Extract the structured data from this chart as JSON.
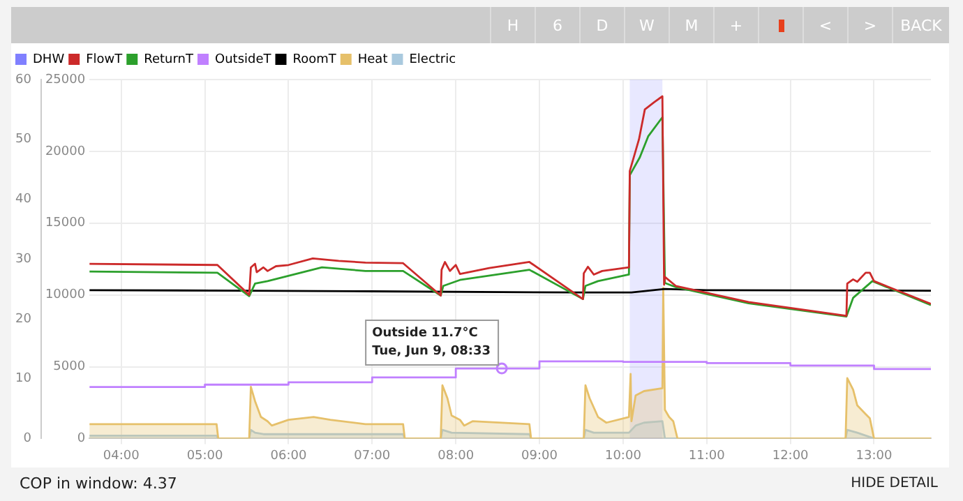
{
  "chart_data": {
    "type": "line",
    "xlim": [
      3.62,
      13.68
    ],
    "xticks": [
      {
        "value": 4,
        "label": "04:00"
      },
      {
        "value": 5,
        "label": "05:00"
      },
      {
        "value": 6,
        "label": "06:00"
      },
      {
        "value": 7,
        "label": "07:00"
      },
      {
        "value": 8,
        "label": "08:00"
      },
      {
        "value": 9,
        "label": "09:00"
      },
      {
        "value": 10,
        "label": "10:00"
      },
      {
        "value": 11,
        "label": "11:00"
      },
      {
        "value": 12,
        "label": "12:00"
      },
      {
        "value": 13,
        "label": "13:00"
      }
    ],
    "ylim": [
      0,
      60
    ],
    "yticks": [
      0,
      10,
      20,
      30,
      40,
      50,
      60
    ],
    "y2lim": [
      0,
      25000
    ],
    "y2ticks": [
      0,
      5000,
      10000,
      15000,
      20000,
      25000
    ],
    "grid": true,
    "legend": "top left",
    "marker": "none",
    "line_style": "solid",
    "bands": [
      {
        "axis": "x",
        "from": 10.08,
        "to": 10.47,
        "label": "DHW",
        "color": "#8080ff"
      }
    ],
    "series": [
      {
        "name": "FlowT",
        "color": "#cc2a2a",
        "type": "line",
        "x": [
          3.62,
          5.15,
          5.53,
          5.55,
          5.6,
          5.62,
          5.7,
          5.75,
          5.85,
          6.0,
          6.29,
          6.6,
          6.92,
          7.37,
          7.82,
          7.83,
          7.87,
          7.93,
          8.0,
          8.05,
          8.4,
          8.88,
          9.52,
          9.53,
          9.58,
          9.65,
          9.75,
          10.07,
          10.08,
          10.19,
          10.26,
          10.37,
          10.47,
          10.49,
          10.5,
          10.63,
          11.5,
          12.67,
          12.68,
          12.75,
          12.8,
          12.9,
          12.95,
          13.0,
          13.68
        ],
        "values": [
          29.2,
          29.0,
          24.0,
          28.6,
          29.2,
          27.8,
          28.6,
          28.0,
          28.8,
          29.0,
          30.1,
          29.7,
          29.4,
          29.3,
          23.9,
          28.2,
          29.5,
          28.0,
          29.0,
          27.5,
          28.5,
          29.5,
          23.3,
          27.6,
          28.7,
          27.4,
          28.0,
          28.6,
          44.7,
          50.0,
          55.0,
          56.2,
          57.2,
          25.7,
          27.0,
          25.5,
          22.8,
          20.5,
          25.9,
          26.6,
          26.2,
          27.7,
          27.7,
          26.3,
          22.5
        ]
      },
      {
        "name": "ReturnT",
        "color": "#2ca02c",
        "type": "line",
        "x": [
          3.62,
          5.15,
          5.53,
          5.6,
          5.75,
          6.4,
          6.92,
          7.37,
          7.82,
          7.85,
          8.05,
          8.88,
          9.52,
          9.55,
          9.7,
          10.07,
          10.08,
          10.2,
          10.3,
          10.47,
          10.5,
          10.63,
          11.5,
          12.67,
          12.75,
          12.98,
          13.68
        ],
        "values": [
          27.9,
          27.7,
          23.8,
          25.9,
          26.3,
          28.6,
          28.0,
          28.0,
          23.9,
          25.5,
          26.5,
          28.2,
          23.3,
          25.5,
          26.3,
          27.4,
          44.0,
          47.0,
          50.5,
          53.7,
          26.0,
          25.3,
          22.6,
          20.4,
          23.5,
          26.3,
          22.3
        ]
      },
      {
        "name": "OutsideT",
        "color": "#c080ff",
        "type": "step",
        "x": [
          3.62,
          5.0,
          6.0,
          7.0,
          8.0,
          9.0,
          10.0,
          11.0,
          12.0,
          13.0,
          13.68
        ],
        "values": [
          8.6,
          9.0,
          9.4,
          10.2,
          11.7,
          12.9,
          12.8,
          12.6,
          12.2,
          11.6,
          11.6
        ]
      },
      {
        "name": "RoomT",
        "color": "#000000",
        "type": "line",
        "x": [
          3.62,
          5.5,
          7.0,
          9.5,
          10.1,
          10.5,
          11.0,
          13.68
        ],
        "values": [
          24.8,
          24.7,
          24.6,
          24.4,
          24.4,
          25.0,
          24.8,
          24.7
        ]
      },
      {
        "name": "Heat",
        "color": "#e6c06a",
        "type": "area",
        "axis": "y2",
        "x": [
          3.62,
          5.14,
          5.16,
          5.53,
          5.55,
          5.6,
          5.67,
          5.75,
          5.8,
          6.0,
          6.3,
          6.5,
          6.92,
          7.37,
          7.39,
          7.82,
          7.84,
          7.9,
          7.95,
          8.05,
          8.1,
          8.2,
          8.88,
          8.9,
          9.53,
          9.55,
          9.6,
          9.7,
          9.8,
          10.07,
          10.09,
          10.1,
          10.15,
          10.25,
          10.47,
          10.48,
          10.5,
          10.55,
          10.6,
          10.65,
          12.66,
          12.68,
          12.75,
          12.8,
          12.9,
          12.95,
          13.0,
          13.68
        ],
        "values": [
          1000,
          1000,
          0,
          0,
          3600,
          2600,
          1500,
          1200,
          900,
          1300,
          1500,
          1300,
          1000,
          1000,
          0,
          0,
          3700,
          2800,
          1600,
          1300,
          900,
          1200,
          1000,
          0,
          0,
          3700,
          2800,
          1500,
          1100,
          1500,
          4500,
          1200,
          3000,
          3300,
          3500,
          10500,
          2000,
          1500,
          1200,
          0,
          0,
          4200,
          3400,
          2300,
          1700,
          1400,
          0,
          0
        ]
      },
      {
        "name": "Electric",
        "color": "#a9c9de",
        "type": "area",
        "axis": "y2",
        "x": [
          3.62,
          5.14,
          5.16,
          5.53,
          5.55,
          5.6,
          5.7,
          7.37,
          7.39,
          7.82,
          7.84,
          7.95,
          8.88,
          8.9,
          9.53,
          9.55,
          9.65,
          10.07,
          10.15,
          10.25,
          10.47,
          10.5,
          12.66,
          12.68,
          12.8,
          13.0,
          13.68
        ],
        "values": [
          200,
          200,
          0,
          0,
          600,
          400,
          300,
          300,
          0,
          0,
          600,
          400,
          300,
          0,
          0,
          600,
          400,
          400,
          900,
          1100,
          1200,
          0,
          0,
          600,
          400,
          0,
          0
        ]
      }
    ],
    "annotations": [
      "H",
      "6",
      "D",
      "W",
      "M",
      "+",
      "<",
      ">",
      "BACK",
      "COP in window: 4.37",
      "HIDE DETAIL",
      {
        "text": "Outside 11.7°C\nTue, Jun 9, 08:33",
        "x": 8.55,
        "y": 11.7
      }
    ]
  }
}
